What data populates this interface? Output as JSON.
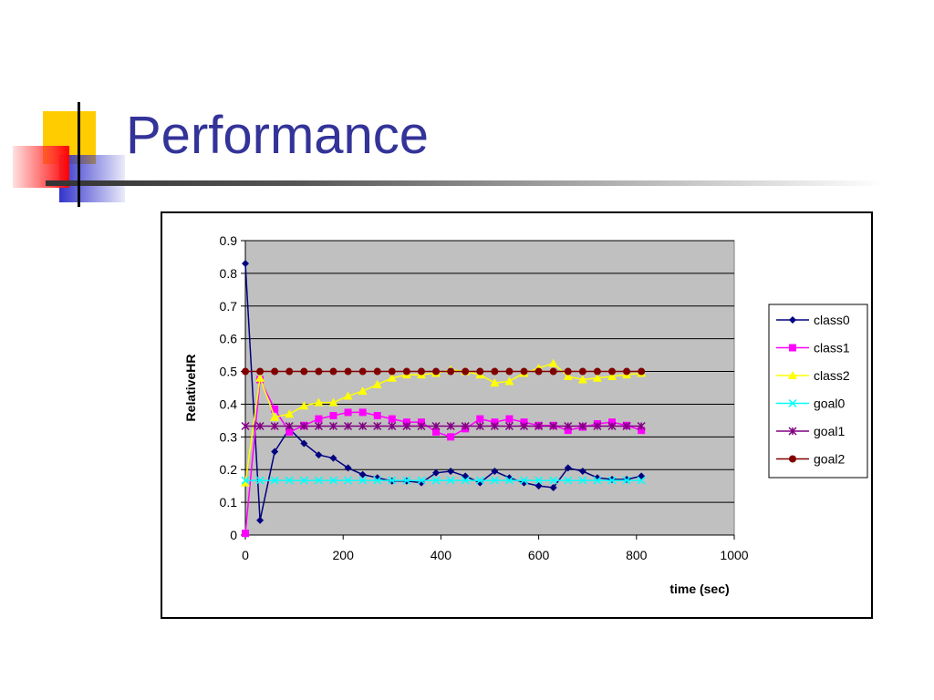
{
  "slide": {
    "title": "Performance"
  },
  "chart_data": {
    "type": "line",
    "xlabel": "time (sec)",
    "ylabel": "RelativeHR",
    "xlim": [
      0,
      1000
    ],
    "ylim": [
      0,
      0.9
    ],
    "xticks": [
      0,
      200,
      400,
      600,
      800,
      1000
    ],
    "yticks": [
      0,
      0.1,
      0.2,
      0.3,
      0.4,
      0.5,
      0.6,
      0.7,
      0.8,
      0.9
    ],
    "grid": "horizontal",
    "plot_background": "#c0c0c0",
    "legend_position": "right",
    "x": [
      0,
      30,
      60,
      90,
      120,
      150,
      180,
      210,
      240,
      270,
      300,
      330,
      360,
      390,
      420,
      450,
      480,
      510,
      540,
      570,
      600,
      630,
      660,
      690,
      720,
      750,
      780,
      810
    ],
    "series": [
      {
        "name": "class0",
        "color": "#000080",
        "marker": "diamond",
        "values": [
          0.83,
          0.045,
          0.255,
          0.325,
          0.28,
          0.245,
          0.235,
          0.205,
          0.185,
          0.175,
          0.165,
          0.165,
          0.16,
          0.19,
          0.195,
          0.18,
          0.16,
          0.195,
          0.175,
          0.16,
          0.15,
          0.145,
          0.205,
          0.195,
          0.175,
          0.17,
          0.17,
          0.18
        ]
      },
      {
        "name": "class1",
        "color": "#ff00ff",
        "marker": "square",
        "values": [
          0.005,
          0.475,
          0.385,
          0.315,
          0.335,
          0.355,
          0.365,
          0.375,
          0.375,
          0.365,
          0.355,
          0.345,
          0.345,
          0.315,
          0.3,
          0.325,
          0.355,
          0.345,
          0.355,
          0.345,
          0.335,
          0.335,
          0.32,
          0.33,
          0.34,
          0.345,
          0.335,
          0.32
        ]
      },
      {
        "name": "class2",
        "color": "#ffff00",
        "marker": "triangle",
        "values": [
          0.16,
          0.48,
          0.36,
          0.37,
          0.395,
          0.405,
          0.405,
          0.425,
          0.44,
          0.46,
          0.48,
          0.49,
          0.49,
          0.495,
          0.505,
          0.5,
          0.49,
          0.465,
          0.47,
          0.495,
          0.51,
          0.525,
          0.485,
          0.475,
          0.48,
          0.485,
          0.49,
          0.495
        ]
      },
      {
        "name": "goal0",
        "color": "#00ffff",
        "marker": "x",
        "values": [
          0.167,
          0.167,
          0.167,
          0.167,
          0.167,
          0.167,
          0.167,
          0.167,
          0.167,
          0.167,
          0.167,
          0.167,
          0.167,
          0.167,
          0.167,
          0.167,
          0.167,
          0.167,
          0.167,
          0.167,
          0.167,
          0.167,
          0.167,
          0.167,
          0.167,
          0.167,
          0.167,
          0.167
        ]
      },
      {
        "name": "goal1",
        "color": "#800080",
        "marker": "star",
        "values": [
          0.333,
          0.333,
          0.333,
          0.333,
          0.333,
          0.333,
          0.333,
          0.333,
          0.333,
          0.333,
          0.333,
          0.333,
          0.333,
          0.333,
          0.333,
          0.333,
          0.333,
          0.333,
          0.333,
          0.333,
          0.333,
          0.333,
          0.333,
          0.333,
          0.333,
          0.333,
          0.333,
          0.333
        ]
      },
      {
        "name": "goal2",
        "color": "#800000",
        "marker": "circle",
        "values": [
          0.5,
          0.5,
          0.5,
          0.5,
          0.5,
          0.5,
          0.5,
          0.5,
          0.5,
          0.5,
          0.5,
          0.5,
          0.5,
          0.5,
          0.5,
          0.5,
          0.5,
          0.5,
          0.5,
          0.5,
          0.5,
          0.5,
          0.5,
          0.5,
          0.5,
          0.5,
          0.5,
          0.5
        ]
      }
    ]
  }
}
